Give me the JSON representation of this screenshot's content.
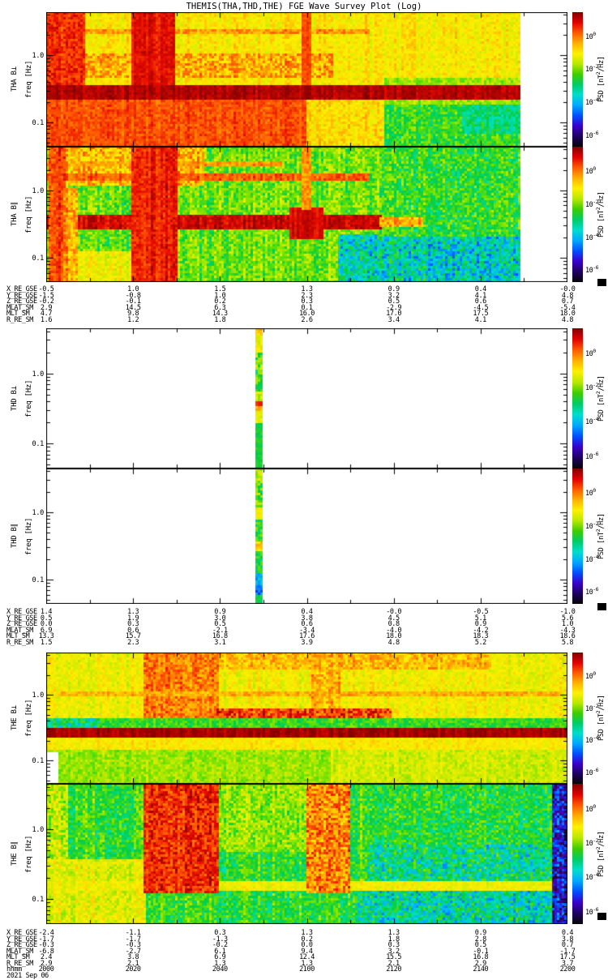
{
  "title": "THEMIS(THA,THD,THE) FGE Wave Survey Plot (Log)",
  "date_label": "2021 Sep 06",
  "y_axis": {
    "label": "freq [Hz]",
    "ticks": [
      "1.0",
      "0.1"
    ]
  },
  "colorbar": {
    "tick_base": "10",
    "tick_exponents": [
      "0",
      "-2",
      "-4",
      "-6"
    ],
    "label_pre": "PSD [nT",
    "label_sup": "2",
    "label_post": "/Hz]",
    "colors": [
      "#7f0000",
      "#e00000",
      "#ff5a00",
      "#ffb000",
      "#fff000",
      "#b8e800",
      "#3fcc00",
      "#00cc66",
      "#00ddcc",
      "#00a8ff",
      "#0050ff",
      "#3a00cc",
      "#1e0060",
      "#060606"
    ]
  },
  "sections": [
    {
      "probe": "THA",
      "panels": [
        {
          "label": "THA B⊥"
        },
        {
          "label": "THA B∥"
        }
      ],
      "ephemeris": {
        "rows": [
          {
            "label": "X_RE_GSE",
            "values": [
              "-0.5",
              "1.0",
              "1.5",
              "1.3",
              "0.9",
              "0.4",
              "-0.0"
            ]
          },
          {
            "label": "Y_RE_GSE",
            "values": [
              "-1.5",
              "-0.8",
              "1.0",
              "2.3",
              "3.2",
              "4.1",
              "4.8"
            ]
          },
          {
            "label": "Z_RE_GSE",
            "values": [
              "-0.2",
              "-0.1",
              "0.2",
              "0.3",
              "0.5",
              "0.6",
              "0.7"
            ]
          },
          {
            "label": "MLAT_SM",
            "values": [
              "2.9",
              "14.5",
              "6.3",
              "0.1",
              "-2.9",
              "-4.5",
              "-5.4"
            ]
          },
          {
            "label": "MLT_SM",
            "values": [
              "4.7",
              "9.8",
              "14.3",
              "16.0",
              "17.0",
              "17.5",
              "18.0"
            ]
          },
          {
            "label": "R_RE_SM",
            "values": [
              "1.6",
              "1.2",
              "1.8",
              "2.6",
              "3.4",
              "4.1",
              "4.8"
            ]
          }
        ]
      }
    },
    {
      "probe": "THD",
      "panels": [
        {
          "label": "THD B⊥"
        },
        {
          "label": "THD B∥"
        }
      ],
      "ephemeris": {
        "rows": [
          {
            "label": "X_RE_GSE",
            "values": [
              "1.4",
              "1.3",
              "0.9",
              "0.4",
              "-0.0",
              "-0.5",
              "-1.0"
            ]
          },
          {
            "label": "Y_RE_GSE",
            "values": [
              "0.5",
              "1.9",
              "3.0",
              "3.8",
              "4.5",
              "5.1",
              "5.6"
            ]
          },
          {
            "label": "Z_RE_GSE",
            "values": [
              "0.0",
              "0.3",
              "0.5",
              "0.6",
              "0.8",
              "0.9",
              "1.0"
            ]
          },
          {
            "label": "MLAT_SM",
            "values": [
              "6.9",
              "0.6",
              "-2.1",
              "-3.4",
              "-4.0",
              "-4.2",
              "-4.3"
            ]
          },
          {
            "label": "MLT_SM",
            "values": [
              "13.3",
              "15.7",
              "16.8",
              "17.6",
              "18.0",
              "18.3",
              "18.6"
            ]
          },
          {
            "label": "R_RE_SM",
            "values": [
              "1.5",
              "2.3",
              "3.1",
              "3.9",
              "4.8",
              "5.2",
              "5.8"
            ]
          }
        ]
      }
    },
    {
      "probe": "THE",
      "panels": [
        {
          "label": "THE B⊥"
        },
        {
          "label": "THE B∥"
        }
      ],
      "ephemeris": {
        "rows": [
          {
            "label": "X_RE_GSE",
            "values": [
              "-2.4",
              "-1.1",
              "0.3",
              "1.3",
              "1.3",
              "0.9",
              "0.4"
            ]
          },
          {
            "label": "Y_RE_GSE",
            "values": [
              "-1.7",
              "-1.7",
              "-1.3",
              "0.2",
              "1.8",
              "2.8",
              "3.8"
            ]
          },
          {
            "label": "Z_RE_GSE",
            "values": [
              "-0.3",
              "-0.3",
              "-0.2",
              "0.0",
              "0.3",
              "0.5",
              "0.7"
            ]
          },
          {
            "label": "MLAT_SM",
            "values": [
              "-6.8",
              "-2.7",
              "6.1",
              "9.4",
              "3.2",
              "-0.1",
              "-1.7"
            ]
          },
          {
            "label": "MLT_SM",
            "values": [
              "2.4",
              "3.8",
              "6.9",
              "12.4",
              "15.5",
              "16.8",
              "17.5"
            ]
          },
          {
            "label": "R_RE_SM",
            "values": [
              "2.9",
              "2.1",
              "1.3",
              "1.3",
              "2.1",
              "2.9",
              "3.7"
            ]
          },
          {
            "label": "hhmm",
            "values": [
              "2000",
              "2020",
              "2040",
              "2100",
              "2120",
              "2140",
              "2200"
            ]
          }
        ]
      }
    }
  ],
  "chart_data": [
    {
      "type": "heatmap",
      "panel": "THA B⊥",
      "x_ticks": [
        "2000",
        "2020",
        "2040",
        "2100",
        "2120",
        "2140",
        "2200"
      ],
      "f_min_hz": 0.044,
      "f_max_hz": 4.4,
      "psd_ticks": [
        "10^0",
        "10^-2",
        "10^-4",
        "10^-6"
      ],
      "data_end_frac": 0.907,
      "base": 0.7,
      "noise": 0.05,
      "stripe": 0.04,
      "features": [
        {
          "x0": 0.04,
          "x1": 0.62,
          "f0": 2.1,
          "f1": 2.4,
          "v": 0.8,
          "n": 0.06
        },
        {
          "x0": 0.0,
          "x1": 0.55,
          "f0": 0.5,
          "f1": 1.05,
          "v": 0.78,
          "n": 0.09
        },
        {
          "x0": 0.0,
          "x1": 0.5,
          "f0": 0.044,
          "f1": 0.22,
          "v": 0.87,
          "n": 0.04
        },
        {
          "x0": 0.5,
          "x1": 0.65,
          "f0": 0.044,
          "f1": 0.22,
          "v": 0.72,
          "n": 0.06
        },
        {
          "x0": 0.65,
          "x1": 0.907,
          "f0": 0.044,
          "f1": 0.2,
          "v": 0.5,
          "n": 0.08
        },
        {
          "x0": 0.8,
          "x1": 0.907,
          "f0": 0.07,
          "f1": 0.18,
          "v": 0.43,
          "n": 0.07
        },
        {
          "x0": 0.65,
          "x1": 0.907,
          "f0": 0.2,
          "f1": 0.45,
          "v": 0.58,
          "n": 0.06
        },
        {
          "x0": 0.0,
          "x1": 0.07,
          "f0": 0.35,
          "f1": 4.4,
          "v": 0.9,
          "n": 0.05
        },
        {
          "x0": 0.165,
          "x1": 0.245,
          "f0": 0.3,
          "f1": 4.4,
          "v": 0.93,
          "n": 0.03
        },
        {
          "x0": 0.494,
          "x1": 0.506,
          "f0": 0.3,
          "f1": 4.4,
          "v": 0.86,
          "n": 0.03
        },
        {
          "x0": 0.0,
          "x1": 0.907,
          "f0": 0.22,
          "f1": 0.35,
          "v": 0.97,
          "n": 0.02
        }
      ]
    },
    {
      "type": "heatmap",
      "panel": "THA B∥",
      "x_ticks": [
        "2000",
        "2020",
        "2040",
        "2100",
        "2120",
        "2140",
        "2200"
      ],
      "f_min_hz": 0.044,
      "f_max_hz": 4.4,
      "psd_ticks": [
        "10^0",
        "10^-2",
        "10^-4",
        "10^-6"
      ],
      "data_end_frac": 0.907,
      "base": 0.55,
      "noise": 0.08,
      "stripe": 0.06,
      "features": [
        {
          "x0": 0.03,
          "x1": 0.3,
          "f0": 1.2,
          "f1": 4.4,
          "v": 0.76,
          "n": 0.1
        },
        {
          "x0": 0.0,
          "x1": 0.62,
          "f0": 1.42,
          "f1": 1.64,
          "v": 0.86,
          "n": 0.04
        },
        {
          "x0": 0.0,
          "x1": 0.45,
          "f0": 2.3,
          "f1": 2.55,
          "v": 0.8,
          "n": 0.05
        },
        {
          "x0": 0.56,
          "x1": 0.907,
          "f0": 0.044,
          "f1": 0.22,
          "v": 0.38,
          "n": 0.12
        },
        {
          "x0": 0.64,
          "x1": 0.907,
          "f0": 0.22,
          "f1": 4.4,
          "v": 0.5,
          "n": 0.09
        },
        {
          "x0": 0.06,
          "x1": 0.16,
          "f0": 0.044,
          "f1": 0.12,
          "v": 0.68,
          "n": 0.06
        },
        {
          "x0": 0.0,
          "x1": 0.64,
          "f0": 0.28,
          "f1": 0.4,
          "v": 0.95,
          "n": 0.03
        },
        {
          "x0": 0.64,
          "x1": 0.72,
          "f0": 0.29,
          "f1": 0.38,
          "v": 0.78,
          "n": 0.08
        },
        {
          "x0": 0.47,
          "x1": 0.53,
          "f0": 0.2,
          "f1": 0.55,
          "v": 0.95,
          "n": 0.02
        },
        {
          "x0": 0.005,
          "x1": 0.035,
          "f0": 0.044,
          "f1": 4.4,
          "v": 0.88,
          "n": 0.05
        },
        {
          "x0": 0.035,
          "x1": 0.06,
          "f0": 0.044,
          "f1": 1.0,
          "v": 0.8,
          "n": 0.08
        },
        {
          "x0": 0.165,
          "x1": 0.25,
          "f0": 0.044,
          "f1": 4.4,
          "v": 0.92,
          "n": 0.04
        },
        {
          "x0": 0.494,
          "x1": 0.506,
          "f0": 0.55,
          "f1": 4.4,
          "v": 0.8,
          "n": 0.05
        }
      ]
    },
    {
      "type": "heatmap",
      "panel": "THD B⊥",
      "x_ticks": [
        "2000",
        "2020",
        "2040",
        "2100",
        "2120",
        "2140",
        "2200"
      ],
      "f_min_hz": 0.044,
      "f_max_hz": 4.4,
      "psd_ticks": [
        "10^0",
        "10^-2",
        "10^-4",
        "10^-6"
      ],
      "base": null,
      "strip": {
        "x0": 0.403,
        "x1": 0.413,
        "segments": [
          {
            "y0": 0.0,
            "y1": 0.06,
            "v": 0.75,
            "n": 0.06
          },
          {
            "y0": 0.06,
            "y1": 0.18,
            "v": 0.68,
            "n": 0.08
          },
          {
            "y0": 0.18,
            "y1": 0.3,
            "v": 0.55,
            "n": 0.12
          },
          {
            "y0": 0.3,
            "y1": 0.45,
            "v": 0.5,
            "n": 0.1
          },
          {
            "y0": 0.45,
            "y1": 0.52,
            "v": 0.63,
            "n": 0.06
          },
          {
            "y0": 0.52,
            "y1": 0.56,
            "v": 0.9,
            "n": 0.03
          },
          {
            "y0": 0.56,
            "y1": 0.6,
            "v": 0.78,
            "n": 0.04
          },
          {
            "y0": 0.6,
            "y1": 0.68,
            "v": 0.66,
            "n": 0.05
          },
          {
            "y0": 0.68,
            "y1": 1.0,
            "v": 0.47,
            "n": 0.03
          }
        ]
      }
    },
    {
      "type": "heatmap",
      "panel": "THD B∥",
      "x_ticks": [
        "2000",
        "2020",
        "2040",
        "2100",
        "2120",
        "2140",
        "2200"
      ],
      "f_min_hz": 0.044,
      "f_max_hz": 4.4,
      "psd_ticks": [
        "10^0",
        "10^-2",
        "10^-4",
        "10^-6"
      ],
      "base": null,
      "strip": {
        "x0": 0.403,
        "x1": 0.413,
        "segments": [
          {
            "y0": 0.0,
            "y1": 0.1,
            "v": 0.62,
            "n": 0.08
          },
          {
            "y0": 0.1,
            "y1": 0.3,
            "v": 0.52,
            "n": 0.1
          },
          {
            "y0": 0.3,
            "y1": 0.38,
            "v": 0.68,
            "n": 0.06
          },
          {
            "y0": 0.38,
            "y1": 0.55,
            "v": 0.5,
            "n": 0.08
          },
          {
            "y0": 0.55,
            "y1": 0.62,
            "v": 0.74,
            "n": 0.05
          },
          {
            "y0": 0.62,
            "y1": 0.78,
            "v": 0.48,
            "n": 0.06
          },
          {
            "y0": 0.78,
            "y1": 0.86,
            "v": 0.32,
            "n": 0.05
          },
          {
            "y0": 0.86,
            "y1": 0.93,
            "v": 0.26,
            "n": 0.06
          },
          {
            "y0": 0.93,
            "y1": 1.0,
            "v": 0.46,
            "n": 0.04
          }
        ]
      }
    },
    {
      "type": "heatmap",
      "panel": "THE B⊥",
      "x_ticks": [
        "2000",
        "2020",
        "2040",
        "2100",
        "2120",
        "2140",
        "2200"
      ],
      "f_min_hz": 0.044,
      "f_max_hz": 4.4,
      "psd_ticks": [
        "10^0",
        "10^-2",
        "10^-4",
        "10^-6"
      ],
      "data_end_frac": 1.0,
      "base": 0.68,
      "noise": 0.05,
      "stripe": 0.04,
      "features": [
        {
          "x0": 0.25,
          "x1": 0.85,
          "f0": 2.6,
          "f1": 4.4,
          "v": 0.76,
          "n": 0.07
        },
        {
          "x0": 0.19,
          "x1": 0.33,
          "f0": 0.42,
          "f1": 4.4,
          "v": 0.83,
          "n": 0.07
        },
        {
          "x0": 0.51,
          "x1": 0.56,
          "f0": 0.42,
          "f1": 4.4,
          "v": 0.78,
          "n": 0.07
        },
        {
          "x0": 0.02,
          "x1": 0.98,
          "f0": 0.95,
          "f1": 1.1,
          "v": 0.78,
          "n": 0.05
        },
        {
          "x0": 0.33,
          "x1": 0.66,
          "f0": 0.44,
          "f1": 0.6,
          "v": 0.88,
          "n": 0.09
        },
        {
          "x0": 0.0,
          "x1": 1.0,
          "f0": 0.3,
          "f1": 0.42,
          "v": 0.5,
          "n": 0.06
        },
        {
          "x0": 0.0,
          "x1": 0.1,
          "f0": 0.3,
          "f1": 0.42,
          "v": 0.43,
          "n": 0.1
        },
        {
          "x0": 0.0,
          "x1": 1.0,
          "f0": 0.215,
          "f1": 0.3,
          "v": 0.98,
          "n": 0.015
        },
        {
          "x0": 0.0,
          "x1": 1.0,
          "f0": 0.14,
          "f1": 0.215,
          "v": 0.7,
          "n": 0.04
        },
        {
          "x0": 0.0,
          "x1": 1.0,
          "f0": 0.044,
          "f1": 0.14,
          "v": 0.58,
          "n": 0.05
        },
        {
          "x0": 0.55,
          "x1": 1.0,
          "f0": 0.044,
          "f1": 0.14,
          "v": 0.63,
          "n": 0.05
        },
        {
          "x0": 0.0,
          "x1": 0.02,
          "f0": 0.044,
          "f1": 0.13,
          "v": null
        }
      ]
    },
    {
      "type": "heatmap",
      "panel": "THE B∥",
      "x_ticks": [
        "2000",
        "2020",
        "2040",
        "2100",
        "2120",
        "2140",
        "2200"
      ],
      "f_min_hz": 0.044,
      "f_max_hz": 4.4,
      "psd_ticks": [
        "10^0",
        "10^-2",
        "10^-4",
        "10^-6"
      ],
      "data_end_frac": 1.0,
      "base": 0.5,
      "noise": 0.08,
      "stripe": 0.05,
      "features": [
        {
          "x0": 0.0,
          "x1": 0.04,
          "f0": 0.35,
          "f1": 4.4,
          "v": 0.62,
          "n": 0.1
        },
        {
          "x0": 0.0,
          "x1": 0.19,
          "f0": 0.044,
          "f1": 0.35,
          "v": 0.66,
          "n": 0.07
        },
        {
          "x0": 0.6,
          "x1": 0.98,
          "f0": 0.044,
          "f1": 0.14,
          "v": 0.4,
          "n": 0.12
        },
        {
          "x0": 0.62,
          "x1": 0.98,
          "f0": 0.18,
          "f1": 0.6,
          "v": 0.42,
          "n": 0.12
        },
        {
          "x0": 0.62,
          "x1": 0.98,
          "f0": 0.6,
          "f1": 4.4,
          "v": 0.48,
          "n": 0.09
        },
        {
          "x0": 0.33,
          "x1": 0.5,
          "f0": 0.5,
          "f1": 4.4,
          "v": 0.58,
          "n": 0.09
        },
        {
          "x0": 0.0,
          "x1": 1.0,
          "f0": 0.14,
          "f1": 0.18,
          "v": 0.68,
          "n": 0.04
        },
        {
          "x0": 0.19,
          "x1": 0.33,
          "f0": 0.13,
          "f1": 4.4,
          "v": 0.9,
          "n": 0.07
        },
        {
          "x0": 0.5,
          "x1": 0.58,
          "f0": 0.13,
          "f1": 4.4,
          "v": 0.82,
          "n": 0.1
        },
        {
          "x0": 0.975,
          "x1": 1.0,
          "f0": 0.044,
          "f1": 4.4,
          "v": 0.18,
          "n": 0.12
        }
      ]
    }
  ]
}
